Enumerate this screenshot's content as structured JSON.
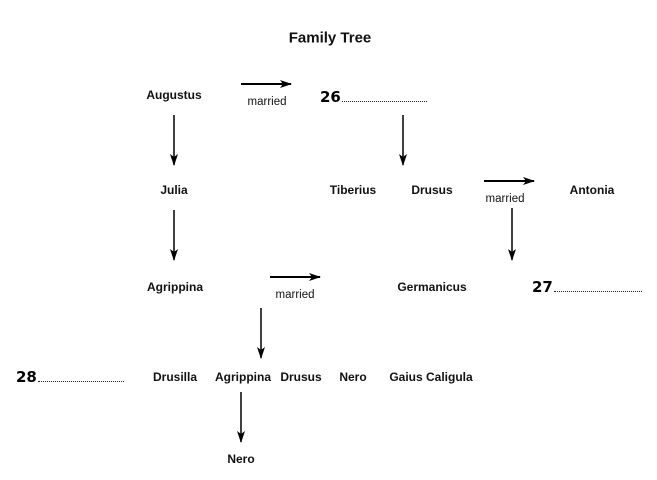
{
  "title": "Family Tree",
  "married_label": "married",
  "row1": {
    "person": "Augustus",
    "blank_number": "26"
  },
  "row2": {
    "left": "Julia",
    "middle1": "Tiberius",
    "middle2": "Drusus",
    "right": "Antonia"
  },
  "row3": {
    "left": "Agrippina",
    "middle": "Germanicus",
    "blank_number": "27"
  },
  "row4": {
    "blank_number": "28",
    "children": [
      "Drusilla",
      "Agrippina",
      "Drusus",
      "Nero",
      "Gaius Caligula"
    ]
  },
  "row5": {
    "person": "Nero"
  }
}
